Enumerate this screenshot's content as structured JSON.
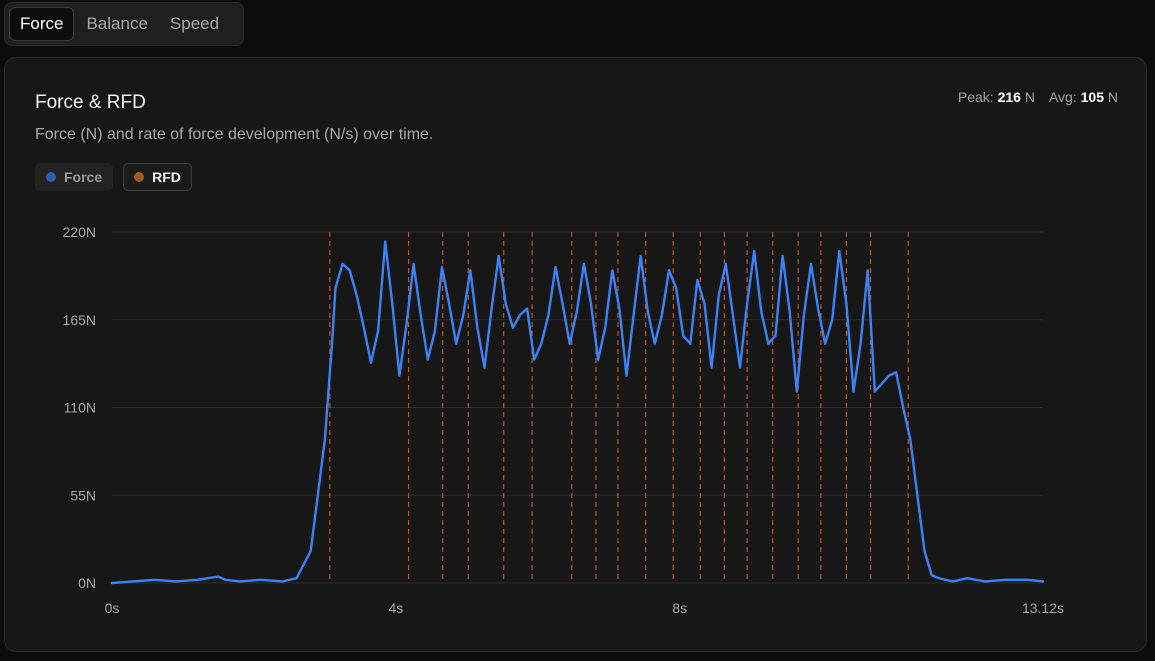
{
  "tabs": [
    {
      "label": "Force",
      "active": true
    },
    {
      "label": "Balance",
      "active": false
    },
    {
      "label": "Speed",
      "active": false
    }
  ],
  "card": {
    "title": "Force & RFD",
    "subtitle": "Force (N) and rate of force development (N/s) over time.",
    "stats": {
      "peak_label": "Peak:",
      "peak_value": "216",
      "peak_unit": "N",
      "avg_label": "Avg:",
      "avg_value": "105",
      "avg_unit": "N"
    }
  },
  "legend": [
    {
      "label": "Force",
      "color": "#2f5ea8",
      "active": false
    },
    {
      "label": "RFD",
      "color": "#a35a1c",
      "active": true
    }
  ],
  "colors": {
    "force_line": "#3b82f6",
    "rfd_line": "#c2541a",
    "grid": "#2c2c2c"
  },
  "chart_data": {
    "type": "line",
    "title": "Force & RFD",
    "xlim": [
      0,
      13.12
    ],
    "ylim": [
      0,
      220
    ],
    "x_tick_labels": [
      "0s",
      "4s",
      "8s",
      "13.12s"
    ],
    "x_tick_values": [
      0,
      4,
      8,
      13.12
    ],
    "y_tick_labels": [
      "0N",
      "55N",
      "110N",
      "165N",
      "220N"
    ],
    "y_tick_values": [
      0,
      55,
      110,
      165,
      220
    ],
    "grid": "horizontal",
    "series": [
      {
        "name": "Force",
        "x": [
          0,
          0.3,
          0.6,
          0.9,
          1.2,
          1.5,
          1.6,
          1.8,
          2.1,
          2.4,
          2.6,
          2.8,
          3.0,
          3.1,
          3.15,
          3.25,
          3.35,
          3.45,
          3.55,
          3.65,
          3.75,
          3.85,
          3.95,
          4.05,
          4.15,
          4.25,
          4.35,
          4.45,
          4.55,
          4.65,
          4.75,
          4.85,
          4.95,
          5.05,
          5.15,
          5.25,
          5.35,
          5.45,
          5.55,
          5.65,
          5.75,
          5.85,
          5.95,
          6.05,
          6.15,
          6.25,
          6.35,
          6.45,
          6.55,
          6.65,
          6.75,
          6.85,
          6.95,
          7.05,
          7.15,
          7.25,
          7.35,
          7.45,
          7.55,
          7.65,
          7.75,
          7.85,
          7.95,
          8.05,
          8.15,
          8.25,
          8.35,
          8.45,
          8.55,
          8.65,
          8.75,
          8.85,
          8.95,
          9.05,
          9.15,
          9.25,
          9.35,
          9.45,
          9.55,
          9.65,
          9.75,
          9.85,
          9.95,
          10.05,
          10.15,
          10.25,
          10.35,
          10.45,
          10.55,
          10.65,
          10.75,
          10.85,
          10.95,
          11.05,
          11.15,
          11.25,
          11.35,
          11.45,
          11.55,
          11.65,
          11.75,
          11.85,
          11.95,
          12.05,
          12.3,
          12.6,
          12.9,
          13.12
        ],
        "y": [
          0,
          1,
          2,
          1,
          2,
          4,
          2,
          1,
          2,
          1,
          3,
          20,
          90,
          150,
          185,
          200,
          196,
          180,
          160,
          138,
          158,
          214,
          175,
          130,
          162,
          200,
          168,
          140,
          158,
          198,
          175,
          150,
          168,
          196,
          160,
          135,
          172,
          205,
          175,
          160,
          168,
          172,
          140,
          150,
          168,
          198,
          175,
          150,
          170,
          200,
          175,
          140,
          160,
          196,
          172,
          130,
          168,
          205,
          170,
          150,
          168,
          196,
          185,
          155,
          150,
          190,
          175,
          135,
          180,
          200,
          168,
          135,
          175,
          208,
          170,
          150,
          155,
          205,
          170,
          120,
          168,
          200,
          172,
          150,
          165,
          208,
          175,
          120,
          150,
          196,
          120,
          125,
          130,
          132,
          110,
          90,
          55,
          20,
          5,
          3,
          2,
          1,
          2,
          3,
          1,
          2,
          2,
          1
        ]
      },
      {
        "name": "RFD",
        "markers_x": [
          3.07,
          4.18,
          4.66,
          5.02,
          5.52,
          5.92,
          6.48,
          6.82,
          7.13,
          7.52,
          7.91,
          8.29,
          8.63,
          8.95,
          9.31,
          9.67,
          9.99,
          10.35,
          10.69,
          11.22
        ]
      }
    ]
  }
}
